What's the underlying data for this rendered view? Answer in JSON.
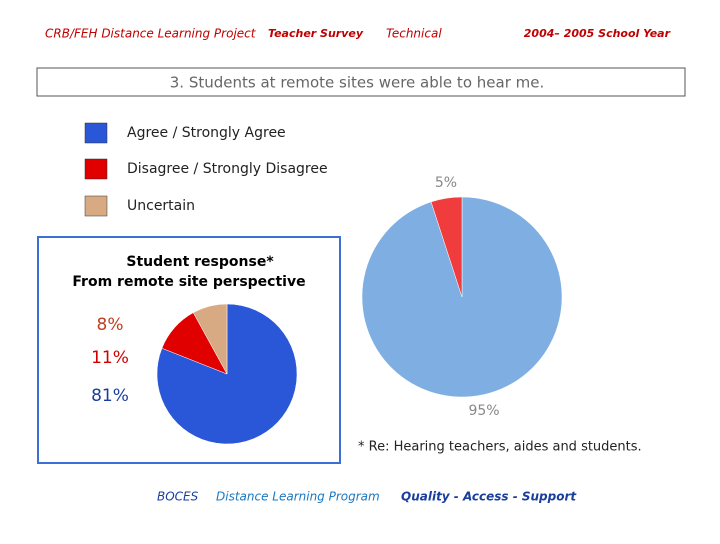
{
  "header": {
    "project": "CRB/FEH Distance Learning Project",
    "survey": "Teacher Survey",
    "section": "Technical",
    "year": "2004– 2005 School Year"
  },
  "question": "3. Students at remote sites were able to hear me.",
  "footnote": "* Re: Hearing teachers, aides and students.",
  "footer": {
    "org": "BOCES",
    "program": "Distance Learning Program",
    "motto": "Quality - Access - Support"
  },
  "chart_data": [
    {
      "type": "pie",
      "values": [
        95,
        5
      ],
      "value_labels": [
        "95%",
        "5%"
      ],
      "colors": [
        "#7eaee2",
        "#f03c3c"
      ]
    },
    {
      "type": "pie",
      "title": "Student response*",
      "subtitle": "From remote site perspective",
      "categories": [
        "Agree / Strongly Agree",
        "Disagree / Strongly Disagree",
        "Uncertain"
      ],
      "values": [
        81,
        11,
        8
      ],
      "value_labels": [
        "81%",
        "11%",
        "8%"
      ],
      "colors": [
        "#2a56d8",
        "#e00000",
        "#d8aa84"
      ]
    }
  ]
}
